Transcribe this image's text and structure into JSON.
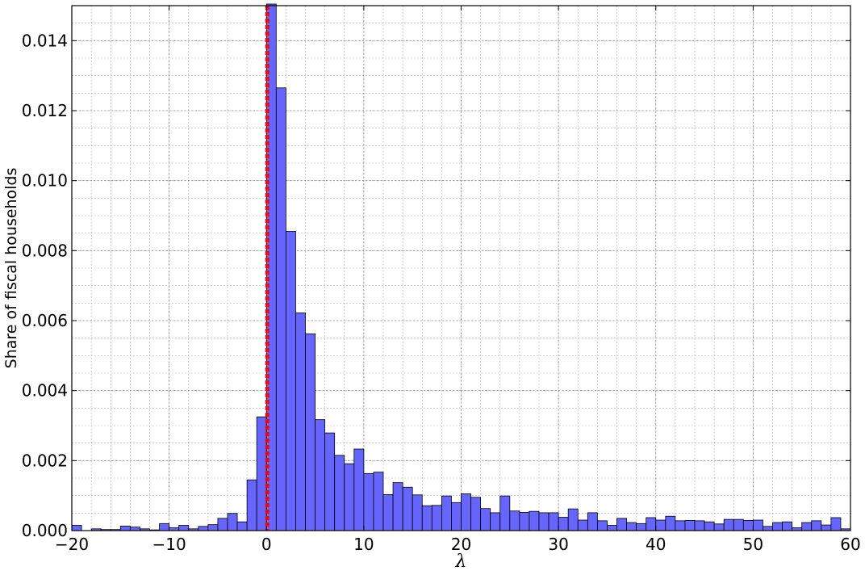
{
  "chart_data": {
    "type": "bar",
    "title": "",
    "xlabel": "λ",
    "ylabel": "Share of fiscal households",
    "xlim": [
      -20,
      60
    ],
    "ylim": [
      0,
      0.015
    ],
    "bin_width": 1,
    "grid": true,
    "minor_grid": true,
    "legend": "none",
    "x_ticks": [
      -20,
      -10,
      0,
      10,
      20,
      30,
      40,
      50,
      60
    ],
    "x_tick_labels": [
      "−20",
      "−10",
      "0",
      "10",
      "20",
      "30",
      "40",
      "50",
      "60"
    ],
    "y_ticks": [
      0,
      0.002,
      0.004,
      0.006,
      0.008,
      0.01,
      0.012,
      0.014
    ],
    "y_tick_labels": [
      "0.000",
      "0.002",
      "0.004",
      "0.006",
      "0.008",
      "0.010",
      "0.012",
      "0.014"
    ],
    "reference_line": {
      "x": 0,
      "style": "dotted",
      "color": "#ff0000"
    },
    "colors": {
      "bar_fill": "#6666ff",
      "bar_edge": "#000000",
      "reference_line": "#ff0000",
      "grid": "#a0a0a0"
    },
    "series": [
      {
        "bins": [
          -20,
          -19,
          -18,
          -17,
          -16,
          -15,
          -14,
          -13,
          -12,
          -11,
          -10,
          -9,
          -8,
          -7,
          -6,
          -5,
          -4,
          -3,
          -2,
          -1,
          0,
          1,
          2,
          3,
          4,
          5,
          6,
          7,
          8,
          9,
          10,
          11,
          12,
          13,
          14,
          15,
          16,
          17,
          18,
          19,
          20,
          21,
          22,
          23,
          24,
          25,
          26,
          27,
          28,
          29,
          30,
          31,
          32,
          33,
          34,
          35,
          36,
          37,
          38,
          39,
          40,
          41,
          42,
          43,
          44,
          45,
          46,
          47,
          48,
          49,
          50,
          51,
          52,
          53,
          54,
          55,
          56,
          57,
          58,
          59
        ],
        "values": [
          0.00015,
          0.0,
          5e-05,
          3e-05,
          3e-05,
          0.00013,
          0.0001,
          5e-05,
          2e-05,
          0.0002,
          8e-05,
          0.00015,
          5e-05,
          0.00012,
          0.00017,
          0.00035,
          0.00049,
          0.00025,
          0.00145,
          0.00325,
          0.0152,
          0.01265,
          0.00855,
          0.00622,
          0.00562,
          0.00317,
          0.00279,
          0.00215,
          0.00191,
          0.00233,
          0.00163,
          0.00167,
          0.00103,
          0.00137,
          0.00124,
          0.00102,
          0.00071,
          0.00072,
          0.00099,
          0.0008,
          0.00105,
          0.00095,
          0.00063,
          0.00051,
          0.00099,
          0.00056,
          0.00052,
          0.00055,
          0.00051,
          0.00051,
          0.00038,
          0.00062,
          0.0003,
          0.00051,
          0.00028,
          0.00015,
          0.00035,
          0.00023,
          0.0002,
          0.00037,
          0.0003,
          0.00041,
          0.00028,
          0.00029,
          0.00028,
          0.00025,
          0.00019,
          0.00032,
          0.00032,
          0.00029,
          0.0003,
          0.00012,
          0.00023,
          0.00025,
          8e-05,
          0.00023,
          0.00028,
          0.00016,
          0.00037,
          5e-05
        ]
      }
    ]
  }
}
